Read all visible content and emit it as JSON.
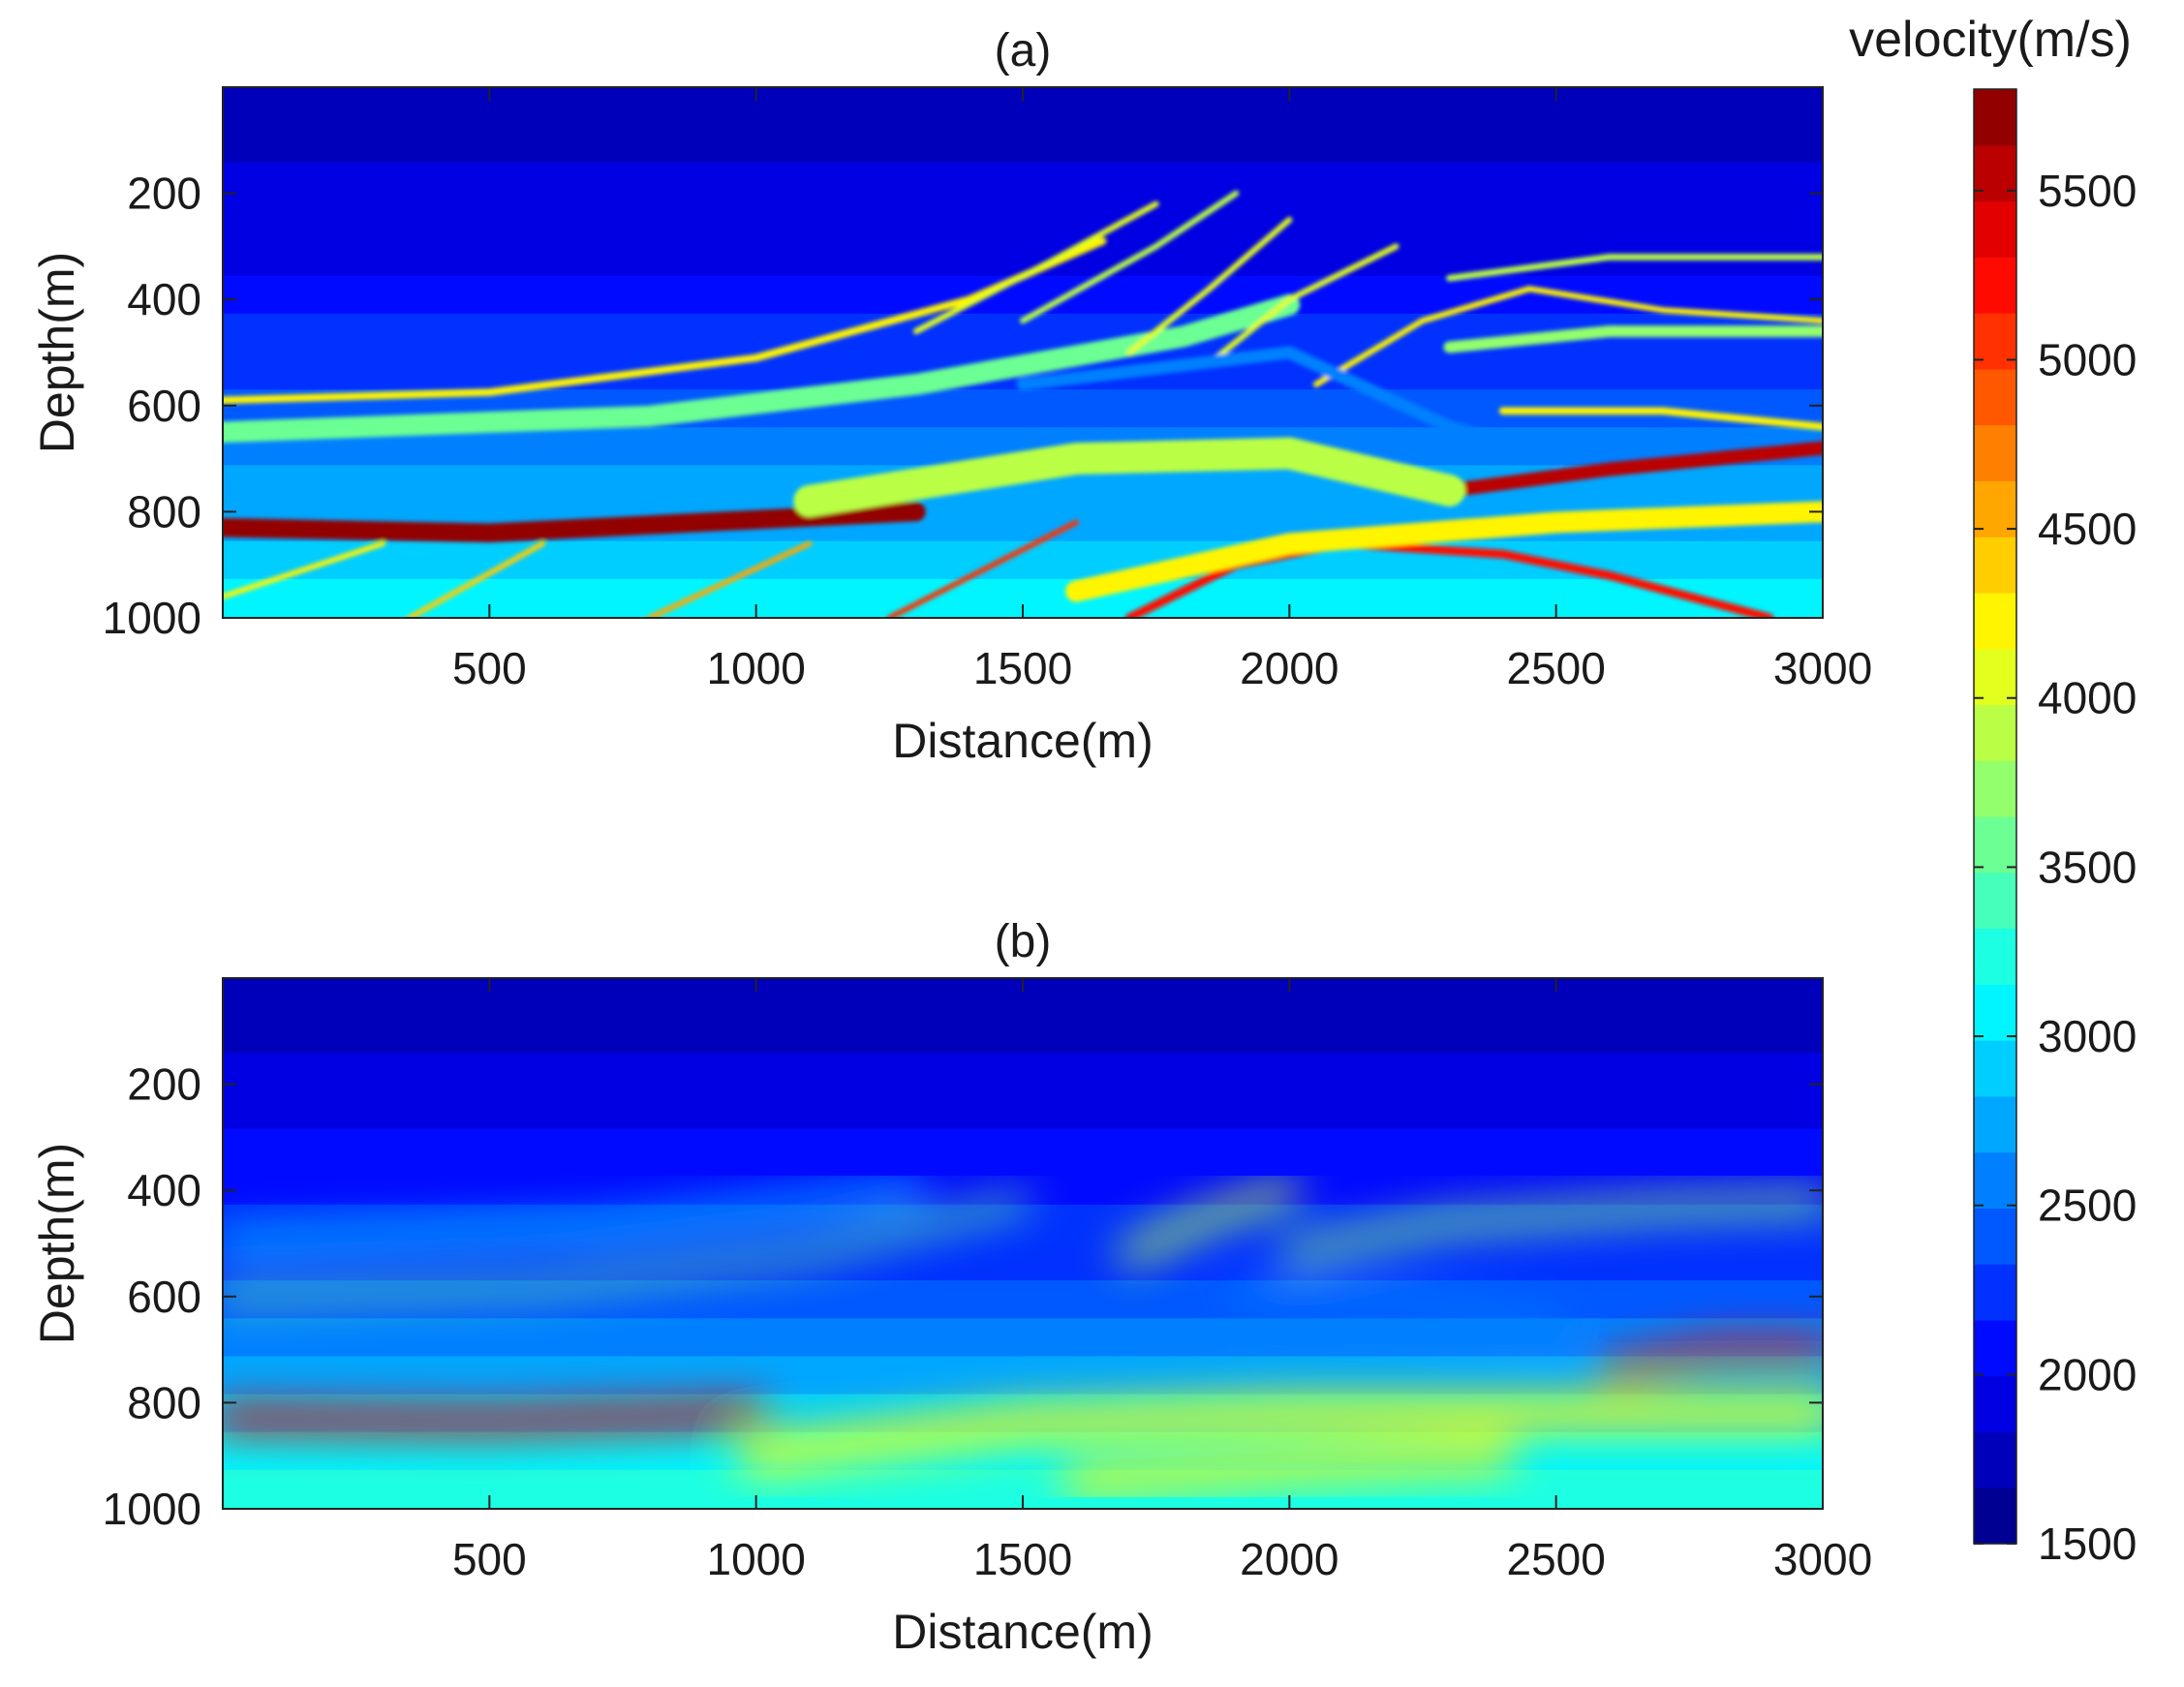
{
  "chart_data": {
    "type": "heatmap",
    "colormap": "jet",
    "levels": 26,
    "colorbar": {
      "title": "velocity(m/s)",
      "range": [
        1500,
        5800
      ],
      "ticks": [
        1500,
        2000,
        2500,
        3000,
        3500,
        4000,
        4500,
        5000,
        5500
      ],
      "tick_labels": [
        "1500",
        "2000",
        "2500",
        "3000",
        "3500",
        "4000",
        "4500",
        "5000",
        "5500"
      ],
      "placement": "right"
    },
    "panels": [
      {
        "title": "(a)",
        "xlabel": "Distance(m)",
        "ylabel": "Depth(m)",
        "xlim": [
          0,
          3000
        ],
        "ylim": [
          0,
          1000
        ],
        "y_reversed": true,
        "xticks": [
          500,
          1000,
          1500,
          2000,
          2500,
          3000
        ],
        "xtick_labels": [
          "500",
          "1000",
          "1500",
          "2000",
          "2500",
          "3000"
        ],
        "yticks": [
          200,
          400,
          600,
          800,
          1000
        ],
        "ytick_labels": [
          "200",
          "400",
          "600",
          "800",
          "1000"
        ],
        "smoothness": 0,
        "velocity_model": {
          "background_top": 1750,
          "background_bottom": 3200,
          "structures": [
            {
              "kind": "layer",
              "points": [
                [
                  0,
                  590
                ],
                [
                  500,
                  575
                ],
                [
                  1000,
                  510
                ],
                [
                  1400,
                  400
                ],
                [
                  1650,
                  290
                ]
              ],
              "width": 14,
              "value": 4300
            },
            {
              "kind": "layer",
              "points": [
                [
                  0,
                  650
                ],
                [
                  800,
                  620
                ],
                [
                  1300,
                  560
                ],
                [
                  1800,
                  470
                ],
                [
                  2000,
                  410
                ]
              ],
              "width": 40,
              "value": 3600
            },
            {
              "kind": "layer",
              "points": [
                [
                  1300,
                  460
                ],
                [
                  1550,
                  330
                ],
                [
                  1750,
                  220
                ]
              ],
              "width": 11,
              "value": 4000
            },
            {
              "kind": "layer",
              "points": [
                [
                  1500,
                  440
                ],
                [
                  1750,
                  300
                ],
                [
                  1900,
                  200
                ]
              ],
              "width": 11,
              "value": 3900
            },
            {
              "kind": "layer",
              "points": [
                [
                  1700,
                  500
                ],
                [
                  1850,
                  380
                ],
                [
                  2000,
                  250
                ]
              ],
              "width": 11,
              "value": 4100
            },
            {
              "kind": "layer",
              "points": [
                [
                  1850,
                  520
                ],
                [
                  2000,
                  400
                ],
                [
                  2200,
                  300
                ]
              ],
              "width": 11,
              "value": 4000
            },
            {
              "kind": "layer",
              "points": [
                [
                  2050,
                  560
                ],
                [
                  2250,
                  440
                ],
                [
                  2450,
                  380
                ],
                [
                  2700,
                  420
                ],
                [
                  3000,
                  440
                ]
              ],
              "width": 11,
              "value": 4300
            },
            {
              "kind": "layer",
              "points": [
                [
                  2300,
                  490
                ],
                [
                  2600,
                  460
                ],
                [
                  3000,
                  460
                ]
              ],
              "width": 22,
              "value": 3700
            },
            {
              "kind": "layer",
              "points": [
                [
                  2400,
                  610
                ],
                [
                  2700,
                  610
                ],
                [
                  3000,
                  640
                ]
              ],
              "width": 14,
              "value": 4300
            },
            {
              "kind": "layer",
              "points": [
                [
                  2300,
                  360
                ],
                [
                  2600,
                  320
                ],
                [
                  3000,
                  320
                ]
              ],
              "width": 12,
              "value": 3900
            },
            {
              "kind": "layer",
              "points": [
                [
                  0,
                  830
                ],
                [
                  500,
                  840
                ],
                [
                  1000,
                  815
                ],
                [
                  1300,
                  800
                ]
              ],
              "width": 36,
              "value": 5700
            },
            {
              "kind": "layer",
              "points": [
                [
                  2300,
                  760
                ],
                [
                  2600,
                  720
                ],
                [
                  3000,
                  680
                ]
              ],
              "width": 26,
              "value": 5600
            },
            {
              "kind": "layer",
              "points": [
                [
                  1100,
                  780
                ],
                [
                  1600,
                  700
                ],
                [
                  2000,
                  690
                ],
                [
                  2300,
                  760
                ]
              ],
              "width": 60,
              "value": 3900
            },
            {
              "kind": "layer",
              "points": [
                [
                  1700,
                  1000
                ],
                [
                  1900,
                  900
                ],
                [
                  2100,
                  860
                ],
                [
                  2400,
                  880
                ],
                [
                  2600,
                  920
                ],
                [
                  2900,
                  1000
                ]
              ],
              "width": 16,
              "value": 5300
            },
            {
              "kind": "layer",
              "points": [
                [
                  1600,
                  950
                ],
                [
                  2000,
                  860
                ],
                [
                  2500,
                  820
                ],
                [
                  3000,
                  800
                ]
              ],
              "width": 40,
              "value": 4200
            },
            {
              "kind": "layer",
              "points": [
                [
                  1250,
                  1000
                ],
                [
                  1600,
                  820
                ]
              ],
              "width": 10,
              "value": 5000
            },
            {
              "kind": "layer",
              "points": [
                [
                  800,
                  1000
                ],
                [
                  1100,
                  860
                ]
              ],
              "width": 10,
              "value": 4600
            },
            {
              "kind": "layer",
              "points": [
                [
                  350,
                  1000
                ],
                [
                  600,
                  860
                ]
              ],
              "width": 10,
              "value": 4400
            },
            {
              "kind": "layer",
              "points": [
                [
                  0,
                  960
                ],
                [
                  300,
                  860
                ]
              ],
              "width": 10,
              "value": 4300
            },
            {
              "kind": "layer",
              "points": [
                [
                  1500,
                  560
                ],
                [
                  2000,
                  500
                ],
                [
                  2300,
                  640
                ],
                [
                  2500,
                  700
                ]
              ],
              "width": 24,
              "value": 2500
            }
          ]
        }
      },
      {
        "title": "(b)",
        "xlabel": "Distance(m)",
        "ylabel": "Depth(m)",
        "xlim": [
          0,
          3000
        ],
        "ylim": [
          0,
          1000
        ],
        "y_reversed": true,
        "xticks": [
          500,
          1000,
          1500,
          2000,
          2500,
          3000
        ],
        "xtick_labels": [
          "500",
          "1000",
          "1500",
          "2000",
          "2500",
          "3000"
        ],
        "yticks": [
          200,
          400,
          600,
          800,
          1000
        ],
        "ytick_labels": [
          "200",
          "400",
          "600",
          "800",
          "1000"
        ],
        "smoothness": 1,
        "velocity_model": {
          "background_top": 1750,
          "background_bottom": 3300,
          "structures": [
            {
              "kind": "layer",
              "points": [
                [
                  0,
                  600
                ],
                [
                  600,
                  580
                ],
                [
                  1100,
                  520
                ],
                [
                  1500,
                  420
                ]
              ],
              "width": 28,
              "value": 3500
            },
            {
              "kind": "layer",
              "points": [
                [
                  0,
                  500
                ],
                [
                  700,
                  470
                ],
                [
                  1300,
                  400
                ]
              ],
              "width": 30,
              "value": 3000
            },
            {
              "kind": "layer",
              "points": [
                [
                  1700,
                  520
                ],
                [
                  1850,
                  450
                ],
                [
                  2000,
                  400
                ]
              ],
              "width": 40,
              "value": 3900
            },
            {
              "kind": "layer",
              "points": [
                [
                  2000,
                  520
                ],
                [
                  2300,
                  460
                ],
                [
                  2700,
                  430
                ],
                [
                  3000,
                  420
                ]
              ],
              "width": 36,
              "value": 3700
            },
            {
              "kind": "layer",
              "points": [
                [
                  0,
                  830
                ],
                [
                  500,
                  835
                ],
                [
                  1000,
                  820
                ]
              ],
              "width": 50,
              "value": 5400
            },
            {
              "kind": "layer",
              "points": [
                [
                  2600,
                  740
                ],
                [
                  2800,
                  700
                ],
                [
                  3000,
                  700
                ]
              ],
              "width": 40,
              "value": 5200
            },
            {
              "kind": "layer",
              "points": [
                [
                  1000,
                  900
                ],
                [
                  1500,
                  840
                ],
                [
                  2000,
                  820
                ],
                [
                  2500,
                  820
                ],
                [
                  3000,
                  820
                ]
              ],
              "width": 70,
              "value": 4100
            },
            {
              "kind": "layer",
              "points": [
                [
                  1600,
                  950
                ],
                [
                  2000,
                  920
                ],
                [
                  2400,
                  900
                ]
              ],
              "width": 50,
              "value": 4300
            },
            {
              "kind": "layer",
              "points": [
                [
                  1900,
                  600
                ],
                [
                  2200,
                  610
                ],
                [
                  2500,
                  650
                ]
              ],
              "width": 30,
              "value": 2600
            }
          ]
        }
      }
    ]
  }
}
